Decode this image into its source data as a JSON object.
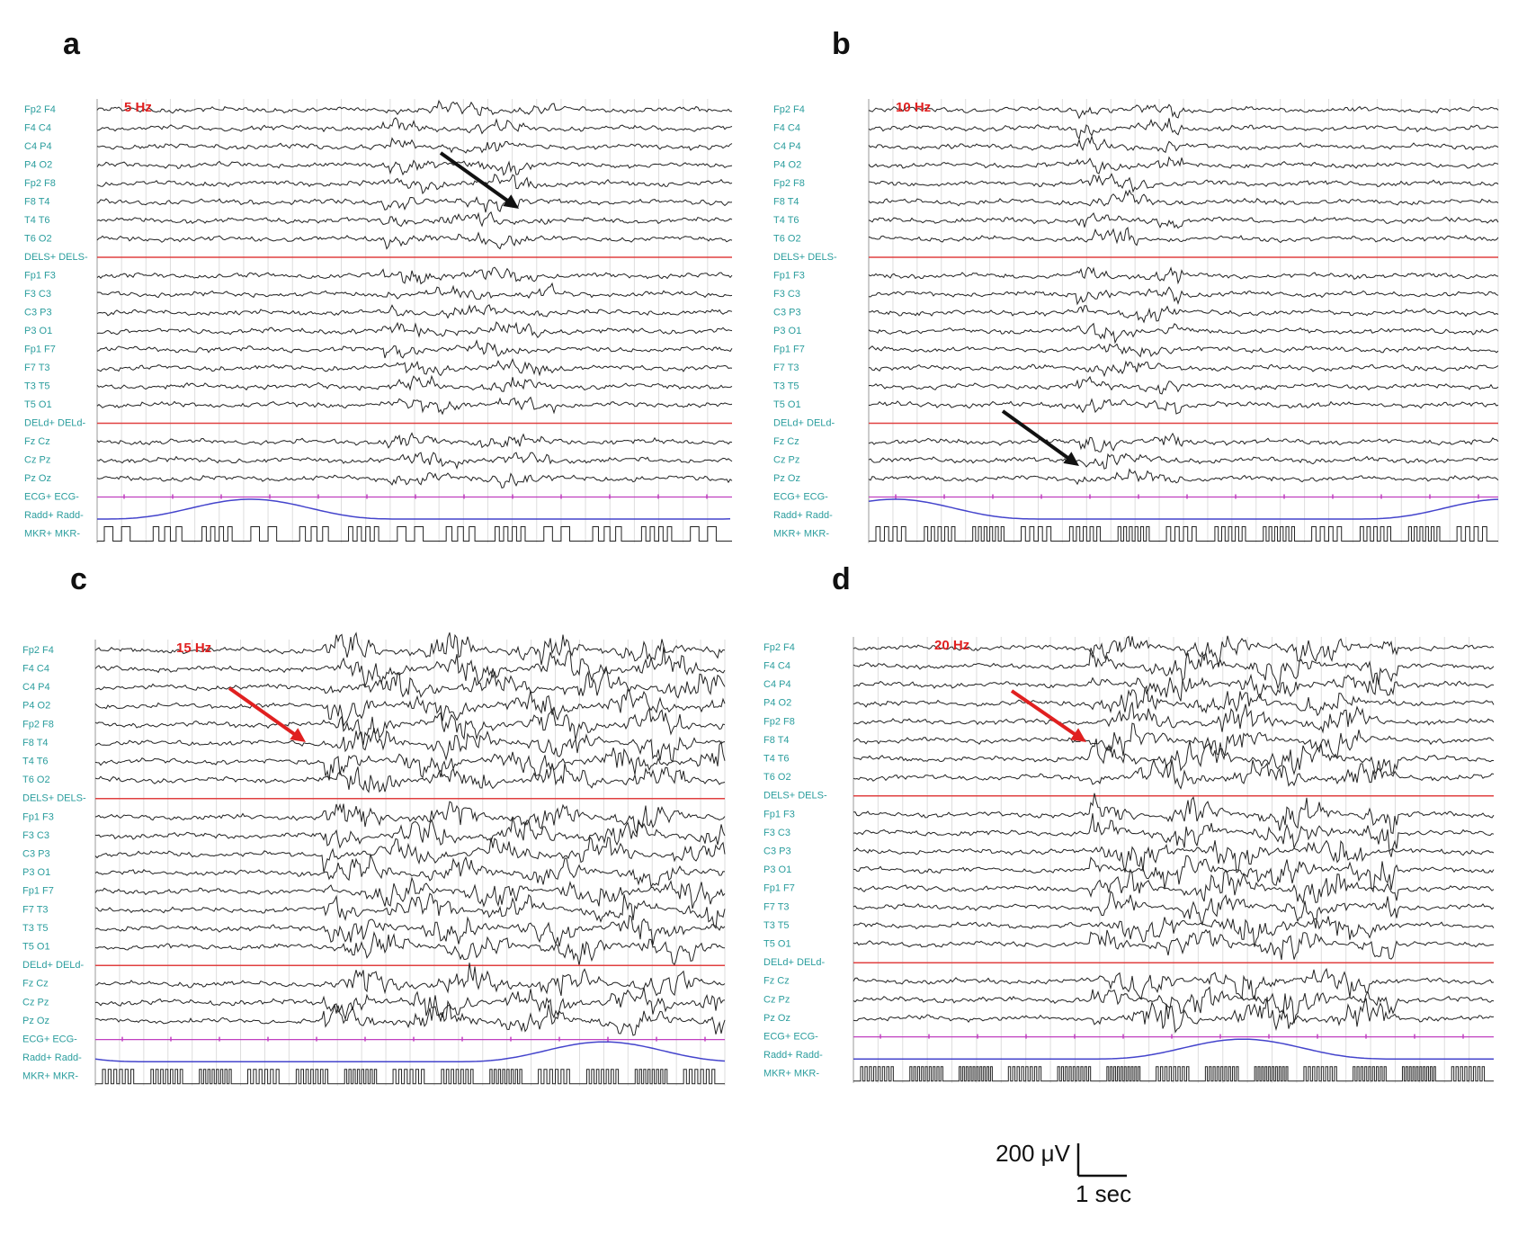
{
  "panels": [
    {
      "letter": "a",
      "frequency": "5 Hz"
    },
    {
      "letter": "b",
      "frequency": "10 Hz"
    },
    {
      "letter": "c",
      "frequency": "15 Hz"
    },
    {
      "letter": "d",
      "frequency": "20 Hz"
    }
  ],
  "channels": [
    "Fp2 F4",
    "F4 C4",
    "C4 P4",
    "P4 O2",
    "Fp2 F8",
    "F8 T4",
    "T4 T6",
    "T6 O2",
    "DELS+ DELS-",
    "Fp1 F3",
    "F3 C3",
    "C3 P3",
    "P3 O1",
    "Fp1 F7",
    "F7 T3",
    "T3 T5",
    "T5 O1",
    "DELd+ DELd-",
    "Fz Cz",
    "Cz Pz",
    "Pz Oz",
    "ECG+ ECG-",
    "Radd+ Radd-",
    "MKR+ MKR-"
  ],
  "scale_bar": {
    "amplitude": "200 μV",
    "time": "1 sec"
  }
}
